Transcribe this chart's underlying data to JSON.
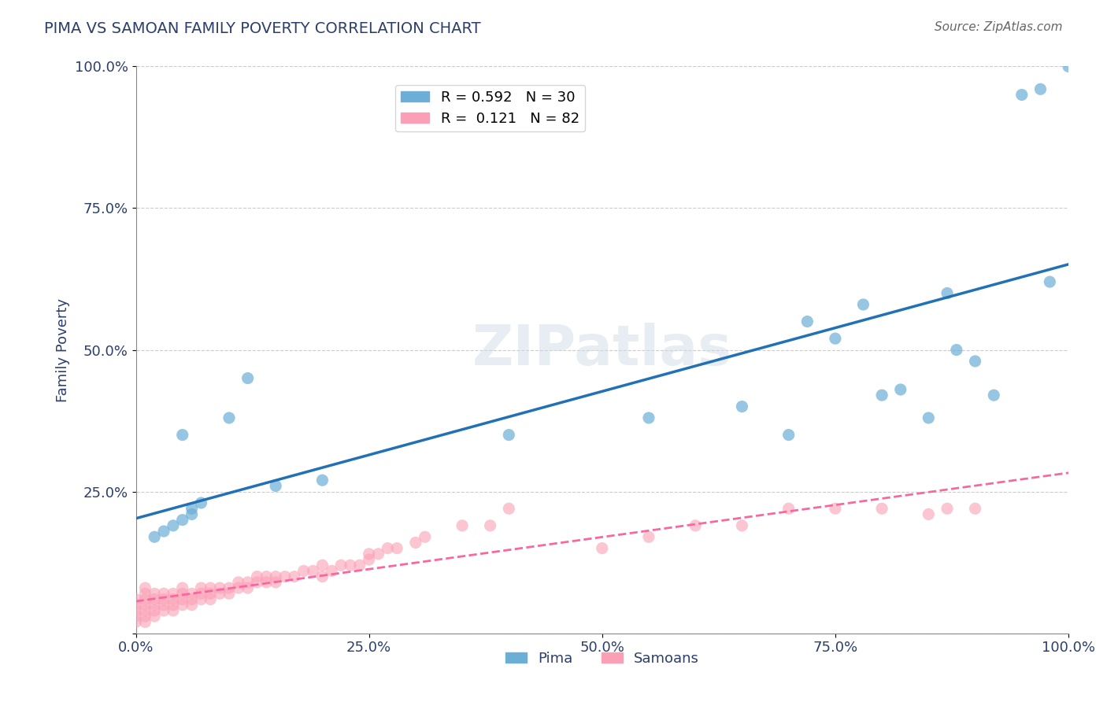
{
  "title": "PIMA VS SAMOAN FAMILY POVERTY CORRELATION CHART",
  "source": "Source: ZipAtlas.com",
  "xlabel": "",
  "ylabel": "Family Poverty",
  "xlim": [
    0,
    1.0
  ],
  "ylim": [
    0,
    1.0
  ],
  "xticks": [
    0.0,
    0.25,
    0.5,
    0.75,
    1.0
  ],
  "yticks": [
    0.0,
    0.25,
    0.5,
    0.75,
    1.0
  ],
  "xticklabels": [
    "0.0%",
    "25.0%",
    "50.0%",
    "75.0%",
    "100.0%"
  ],
  "yticklabels": [
    "",
    "25.0%",
    "50.0%",
    "75.0%",
    "100.0%"
  ],
  "pima_color": "#6baed6",
  "samoans_color": "#fa9fb5",
  "pima_line_color": "#2171b5",
  "samoans_line_color": "#f768a1",
  "R_pima": 0.592,
  "N_pima": 30,
  "R_samoans": 0.121,
  "N_samoans": 82,
  "watermark": "ZIPatlas",
  "title_color": "#2c3e6b",
  "axis_label_color": "#2c3e6b",
  "tick_label_color": "#2c3e6b",
  "legend_label1": "Pima",
  "legend_label2": "Samoans",
  "pima_x": [
    0.02,
    0.03,
    0.04,
    0.05,
    0.05,
    0.06,
    0.06,
    0.07,
    0.1,
    0.12,
    0.15,
    0.2,
    0.4,
    0.55,
    0.65,
    0.7,
    0.72,
    0.75,
    0.78,
    0.8,
    0.82,
    0.85,
    0.87,
    0.88,
    0.9,
    0.92,
    0.95,
    0.97,
    0.98,
    1.0
  ],
  "pima_y": [
    0.17,
    0.18,
    0.19,
    0.2,
    0.35,
    0.22,
    0.21,
    0.23,
    0.38,
    0.45,
    0.26,
    0.27,
    0.35,
    0.38,
    0.4,
    0.35,
    0.55,
    0.52,
    0.58,
    0.42,
    0.43,
    0.38,
    0.6,
    0.5,
    0.48,
    0.42,
    0.95,
    0.96,
    0.62,
    1.0
  ],
  "samoans_x": [
    0.0,
    0.0,
    0.0,
    0.0,
    0.0,
    0.01,
    0.01,
    0.01,
    0.01,
    0.01,
    0.01,
    0.01,
    0.02,
    0.02,
    0.02,
    0.02,
    0.02,
    0.03,
    0.03,
    0.03,
    0.03,
    0.04,
    0.04,
    0.04,
    0.04,
    0.05,
    0.05,
    0.05,
    0.05,
    0.06,
    0.06,
    0.06,
    0.07,
    0.07,
    0.07,
    0.08,
    0.08,
    0.08,
    0.09,
    0.09,
    0.1,
    0.1,
    0.11,
    0.11,
    0.12,
    0.12,
    0.13,
    0.13,
    0.14,
    0.14,
    0.15,
    0.15,
    0.16,
    0.17,
    0.18,
    0.19,
    0.2,
    0.2,
    0.21,
    0.22,
    0.23,
    0.24,
    0.25,
    0.25,
    0.26,
    0.27,
    0.28,
    0.3,
    0.31,
    0.35,
    0.38,
    0.4,
    0.5,
    0.55,
    0.6,
    0.65,
    0.7,
    0.75,
    0.8,
    0.85,
    0.87,
    0.9
  ],
  "samoans_y": [
    0.02,
    0.03,
    0.04,
    0.05,
    0.06,
    0.02,
    0.03,
    0.04,
    0.05,
    0.06,
    0.07,
    0.08,
    0.03,
    0.04,
    0.05,
    0.06,
    0.07,
    0.04,
    0.05,
    0.06,
    0.07,
    0.04,
    0.05,
    0.06,
    0.07,
    0.05,
    0.06,
    0.07,
    0.08,
    0.05,
    0.06,
    0.07,
    0.06,
    0.07,
    0.08,
    0.06,
    0.07,
    0.08,
    0.07,
    0.08,
    0.07,
    0.08,
    0.08,
    0.09,
    0.08,
    0.09,
    0.09,
    0.1,
    0.09,
    0.1,
    0.09,
    0.1,
    0.1,
    0.1,
    0.11,
    0.11,
    0.1,
    0.12,
    0.11,
    0.12,
    0.12,
    0.12,
    0.13,
    0.14,
    0.14,
    0.15,
    0.15,
    0.16,
    0.17,
    0.19,
    0.19,
    0.22,
    0.15,
    0.17,
    0.19,
    0.19,
    0.22,
    0.22,
    0.22,
    0.21,
    0.22,
    0.22
  ]
}
